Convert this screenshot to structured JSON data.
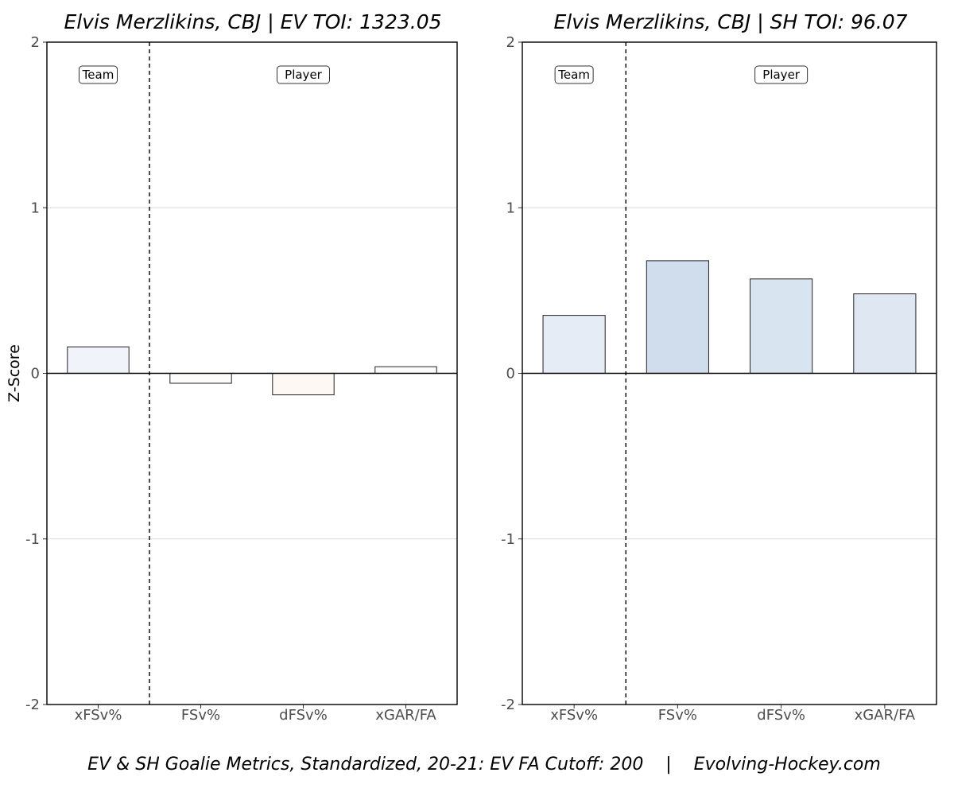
{
  "chart_data": [
    {
      "type": "bar",
      "title": "Elvis Merzlikins, CBJ | EV TOI: 1323.05",
      "xlabel": "",
      "ylabel": "Z-Score",
      "ylim": [
        -2,
        2
      ],
      "y_ticks": [
        "2",
        "1",
        "0",
        "-1",
        "-2"
      ],
      "y_tick_values": [
        2,
        1,
        0,
        -1,
        -2
      ],
      "categories": [
        "xFSv%",
        "FSv%",
        "dFSv%",
        "xGAR/FA"
      ],
      "values": [
        0.16,
        -0.06,
        -0.13,
        0.04
      ],
      "bar_colors": [
        "#f0f4fa",
        "#fefcfb",
        "#fef8f4",
        "#fbfcfe"
      ],
      "group_labels": [
        "Team",
        "Player"
      ],
      "grid": "horizontal",
      "divider_after_category": 0
    },
    {
      "type": "bar",
      "title": "Elvis Merzlikins, CBJ | SH TOI: 96.07",
      "xlabel": "",
      "ylabel": "",
      "ylim": [
        -2,
        2
      ],
      "y_ticks": [
        "2",
        "1",
        "0",
        "-1",
        "-2"
      ],
      "y_tick_values": [
        2,
        1,
        0,
        -1,
        -2
      ],
      "categories": [
        "xFSv%",
        "FSv%",
        "dFSv%",
        "xGAR/FA"
      ],
      "values": [
        0.35,
        0.68,
        0.57,
        0.48
      ],
      "bar_colors": [
        "#e6ecf5",
        "#cfdded",
        "#d9e4f1",
        "#dee7f2"
      ],
      "group_labels": [
        "Team",
        "Player"
      ],
      "grid": "horizontal",
      "divider_after_category": 0
    }
  ],
  "caption": "EV & SH Goalie Metrics, Standardized, 20-21: EV FA Cutoff: 200    |    Evolving-Hockey.com"
}
